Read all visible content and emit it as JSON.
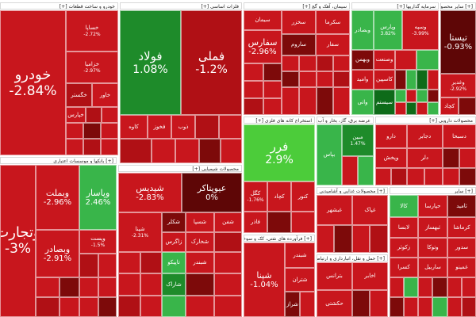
{
  "colors": {
    "strong_red": "#c8161d",
    "dark_red": "#7d0a0a",
    "deep_red": "#5e0606",
    "mid_red": "#b01015",
    "green": "#1e8b2a",
    "light_green": "#39b54a",
    "bright_green": "#4ccc3a",
    "dark_green": "#0e6b19"
  },
  "sectors": [
    {
      "label": "خودرو و ساخت قطعات [+]"
    },
    {
      "label": "فلزات اساسی [+]"
    },
    {
      "label": "سیمان، آهک و گچ [+]"
    },
    {
      "label": "سرمایه گذاریها [+]"
    },
    {
      "label": "[+] سایر محصولات کانی غیرفلزی"
    },
    {
      "label": "[+] بانکها و موسسات اعتباری"
    },
    {
      "label": "محصولات شیمیایی [+]"
    },
    {
      "label": "استخراج کانه های فلزی [+]"
    },
    {
      "label": "عرضه برق، گاز، بخار و آب گرم [+]"
    },
    {
      "label": "محصولات دارویی [+]"
    },
    {
      "label": "[+] فرآورده های نفتی، کک و سوخت هسته ای"
    },
    {
      "label": "[+] محصولات غذایی و آشامیدنی"
    },
    {
      "label": "[+] حمل و نقل، انبارداری و ارتباطات"
    },
    {
      "label": "[+] سایر"
    }
  ],
  "tiles": [
    {
      "name": "خودرو",
      "pct": "-2.84%",
      "color": "strong_red"
    },
    {
      "name": "خساپا",
      "pct": "-2.72%",
      "color": "strong_red"
    },
    {
      "name": "خزامیا",
      "pct": "-2.97%",
      "color": "strong_red"
    },
    {
      "name": "خگستر",
      "pct": "",
      "color": "mid_red"
    },
    {
      "name": "خاور",
      "pct": "",
      "color": "strong_red"
    },
    {
      "name": "خپارس",
      "pct": "",
      "color": "strong_red"
    },
    {
      "name": "فولاد",
      "pct": "1.08%",
      "color": "green"
    },
    {
      "name": "فملی",
      "pct": "-1.2%",
      "color": "mid_red"
    },
    {
      "name": "کاوه",
      "pct": "",
      "color": "strong_red"
    },
    {
      "name": "فخوز",
      "pct": "",
      "color": "strong_red"
    },
    {
      "name": "ذوب",
      "pct": "",
      "color": "strong_red"
    },
    {
      "name": "سیمان",
      "pct": "",
      "color": "strong_red"
    },
    {
      "name": "سفارس",
      "pct": "-2.96%",
      "color": "strong_red"
    },
    {
      "name": "سخزر",
      "pct": "",
      "color": "strong_red"
    },
    {
      "name": "سکرما",
      "pct": "",
      "color": "strong_red"
    },
    {
      "name": "ساروم",
      "pct": "",
      "color": "dark_red"
    },
    {
      "name": "سفار",
      "pct": "",
      "color": "strong_red"
    },
    {
      "name": "وبصادر",
      "pct": "",
      "color": "light_green"
    },
    {
      "name": "وپارس",
      "pct": "3.82%",
      "color": "light_green"
    },
    {
      "name": "وسپه",
      "pct": "-3.99%",
      "color": "strong_red"
    },
    {
      "name": "وبهمن",
      "pct": "",
      "color": "dark_red"
    },
    {
      "name": "وصنعت",
      "pct": "",
      "color": "strong_red"
    },
    {
      "name": "وامید",
      "pct": "",
      "color": "strong_red"
    },
    {
      "name": "کاسپین",
      "pct": "",
      "color": "strong_red"
    },
    {
      "name": "واتی",
      "pct": "",
      "color": "light_green"
    },
    {
      "name": "سیستم",
      "pct": "",
      "color": "dark_green"
    },
    {
      "name": "وغدیر",
      "pct": "-2.92%",
      "color": "strong_red"
    },
    {
      "name": "کچاد",
      "pct": "",
      "color": "strong_red"
    },
    {
      "name": "تیستا",
      "pct": "-0.93%",
      "color": "deep_red"
    },
    {
      "name": "وتجارت",
      "pct": "-3%",
      "color": "strong_red"
    },
    {
      "name": "وبملت",
      "pct": "-2.96%",
      "color": "strong_red"
    },
    {
      "name": "وپاسار",
      "pct": "2.46%",
      "color": "light_green"
    },
    {
      "name": "وبصادر",
      "pct": "-2.91%",
      "color": "strong_red"
    },
    {
      "name": "وپست",
      "pct": "-1.5%",
      "color": "strong_red"
    },
    {
      "name": "شپدیس",
      "pct": "-2.83%",
      "color": "strong_red"
    },
    {
      "name": "عیوپتاکر",
      "pct": "0%",
      "color": "deep_red"
    },
    {
      "name": "شپنا",
      "pct": "-2.31%",
      "color": "strong_red"
    },
    {
      "name": "شکلر",
      "pct": "",
      "color": "dark_red"
    },
    {
      "name": "شسپا",
      "pct": "",
      "color": "strong_red"
    },
    {
      "name": "شفن",
      "pct": "",
      "color": "strong_red"
    },
    {
      "name": "زاگرس",
      "pct": "",
      "color": "strong_red"
    },
    {
      "name": "شخارک",
      "pct": "",
      "color": "strong_red"
    },
    {
      "name": "تاپیکو",
      "pct": "",
      "color": "light_green"
    },
    {
      "name": "شبندر",
      "pct": "",
      "color": "strong_red"
    },
    {
      "name": "شاراک",
      "pct": "",
      "color": "green"
    },
    {
      "name": "فرر",
      "pct": "2.9%",
      "color": "light_green"
    },
    {
      "name": "کگل",
      "pct": "-1.76%",
      "color": "strong_red"
    },
    {
      "name": "کچاد",
      "pct": "",
      "color": "strong_red"
    },
    {
      "name": "کنور",
      "pct": "",
      "color": "strong_red"
    },
    {
      "name": "فاذر",
      "pct": "",
      "color": "strong_red"
    },
    {
      "name": "بپاس",
      "pct": "",
      "color": "light_green"
    },
    {
      "name": "مبین",
      "pct": "1.47%",
      "color": "green"
    },
    {
      "name": "شپنا",
      "pct": "-1.04%",
      "color": "strong_red"
    },
    {
      "name": "شبندر",
      "pct": "",
      "color": "strong_red"
    },
    {
      "name": "شتران",
      "pct": "",
      "color": "strong_red"
    },
    {
      "name": "شراز",
      "pct": "",
      "color": "dark_red"
    },
    {
      "name": "دارو",
      "pct": "",
      "color": "strong_red"
    },
    {
      "name": "دجابر",
      "pct": "",
      "color": "strong_red"
    },
    {
      "name": "دسبحا",
      "pct": "",
      "color": "strong_red"
    },
    {
      "name": "وپخش",
      "pct": "",
      "color": "strong_red"
    },
    {
      "name": "دلر",
      "pct": "",
      "color": "strong_red"
    },
    {
      "name": "غبشهر",
      "pct": "",
      "color": "strong_red"
    },
    {
      "name": "غپاک",
      "pct": "",
      "color": "strong_red"
    },
    {
      "name": "بترانس",
      "pct": "",
      "color": "strong_red"
    },
    {
      "name": "اخابر",
      "pct": "",
      "color": "strong_red"
    },
    {
      "name": "حکشتی",
      "pct": "",
      "color": "strong_red"
    },
    {
      "name": "کالا",
      "pct": "",
      "color": "light_green"
    },
    {
      "name": "حپارسا",
      "pct": "",
      "color": "strong_red"
    },
    {
      "name": "ثامید",
      "pct": "",
      "color": "dark_red"
    },
    {
      "name": "لابسا",
      "pct": "",
      "color": "strong_red"
    },
    {
      "name": "ثبهساز",
      "pct": "",
      "color": "strong_red"
    },
    {
      "name": "کرماشا",
      "pct": "",
      "color": "strong_red"
    },
    {
      "name": "زکوثر",
      "pct": "",
      "color": "strong_red"
    },
    {
      "name": "وتوکا",
      "pct": "",
      "color": "strong_red"
    },
    {
      "name": "سدور",
      "pct": "",
      "color": "strong_red"
    },
    {
      "name": "کسرا",
      "pct": "",
      "color": "strong_red"
    },
    {
      "name": "ساربیل",
      "pct": "",
      "color": "strong_red"
    },
    {
      "name": "غمینو",
      "pct": "",
      "color": "strong_red"
    }
  ]
}
